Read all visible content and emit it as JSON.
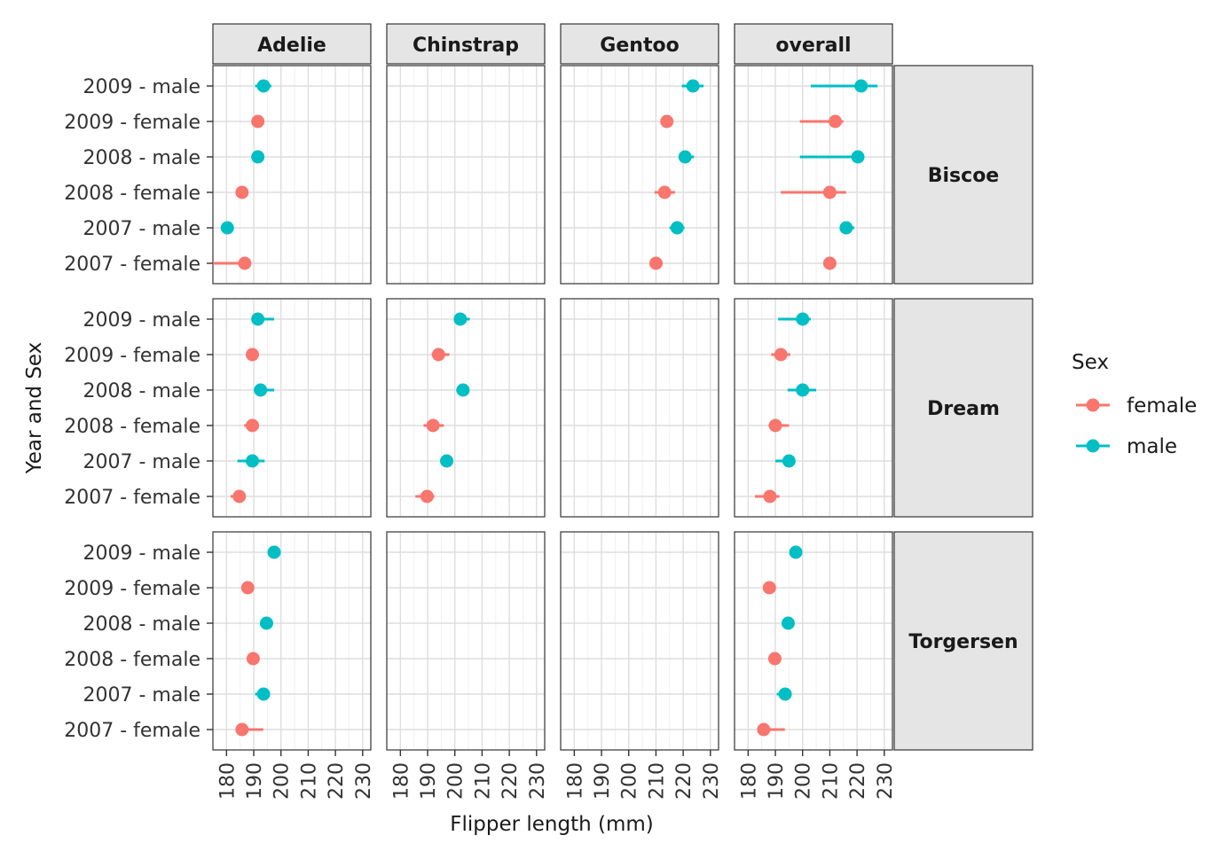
{
  "chart_data": {
    "type": "scatter",
    "subtype": "pointrange facet grid",
    "xlabel": "Flipper length (mm)",
    "ylabel": "Year and Sex",
    "xlim": [
      175,
      233
    ],
    "x_ticks": [
      180,
      190,
      200,
      210,
      220,
      230
    ],
    "y_categories": [
      "2009 - male",
      "2009 - female",
      "2008 - male",
      "2008 - female",
      "2007 - male",
      "2007 - female"
    ],
    "columns": [
      "Adelie",
      "Chinstrap",
      "Gentoo",
      "overall"
    ],
    "rows": [
      "Biscoe",
      "Dream",
      "Torgersen"
    ],
    "grid": true,
    "legend": {
      "title": "Sex",
      "placement": "right",
      "items": [
        {
          "label": "female",
          "color": "#F8766D"
        },
        {
          "label": "male",
          "color": "#00BFC4"
        }
      ]
    },
    "colors": {
      "female": "#F8766D",
      "male": "#00BFC4"
    },
    "points": [
      {
        "row": "Biscoe",
        "col": "Adelie",
        "y": "2009 - male",
        "sex": "male",
        "x": 193.6,
        "lo": 190.5,
        "hi": 196.5
      },
      {
        "row": "Biscoe",
        "col": "Adelie",
        "y": "2009 - female",
        "sex": "female",
        "x": 191.5,
        "lo": 190.0,
        "hi": 193.5
      },
      {
        "row": "Biscoe",
        "col": "Adelie",
        "y": "2008 - male",
        "sex": "male",
        "x": 191.5,
        "lo": 190.0,
        "hi": 193.0
      },
      {
        "row": "Biscoe",
        "col": "Adelie",
        "y": "2008 - female",
        "sex": "female",
        "x": 185.7,
        "lo": 184.5,
        "hi": 187.0
      },
      {
        "row": "Biscoe",
        "col": "Adelie",
        "y": "2007 - male",
        "sex": "male",
        "x": 180.3,
        "lo": 178.5,
        "hi": 182.0
      },
      {
        "row": "Biscoe",
        "col": "Adelie",
        "y": "2007 - female",
        "sex": "female",
        "x": 186.7,
        "lo": 175.0,
        "hi": 188.5
      },
      {
        "row": "Biscoe",
        "col": "Gentoo",
        "y": "2009 - male",
        "sex": "male",
        "x": 223.6,
        "lo": 219.5,
        "hi": 227.5
      },
      {
        "row": "Biscoe",
        "col": "Gentoo",
        "y": "2009 - female",
        "sex": "female",
        "x": 214.0,
        "lo": 213.0,
        "hi": 215.0
      },
      {
        "row": "Biscoe",
        "col": "Gentoo",
        "y": "2008 - male",
        "sex": "male",
        "x": 220.7,
        "lo": 218.5,
        "hi": 224.0
      },
      {
        "row": "Biscoe",
        "col": "Gentoo",
        "y": "2008 - female",
        "sex": "female",
        "x": 213.2,
        "lo": 209.5,
        "hi": 217.0
      },
      {
        "row": "Biscoe",
        "col": "Gentoo",
        "y": "2007 - male",
        "sex": "male",
        "x": 217.8,
        "lo": 215.0,
        "hi": 220.5
      },
      {
        "row": "Biscoe",
        "col": "Gentoo",
        "y": "2007 - female",
        "sex": "female",
        "x": 210.0,
        "lo": 208.5,
        "hi": 212.5
      },
      {
        "row": "Biscoe",
        "col": "overall",
        "y": "2009 - male",
        "sex": "male",
        "x": 221.5,
        "lo": 203.0,
        "hi": 227.5
      },
      {
        "row": "Biscoe",
        "col": "overall",
        "y": "2009 - female",
        "sex": "female",
        "x": 212.0,
        "lo": 199.0,
        "hi": 215.0
      },
      {
        "row": "Biscoe",
        "col": "overall",
        "y": "2008 - male",
        "sex": "male",
        "x": 220.3,
        "lo": 199.0,
        "hi": 222.5
      },
      {
        "row": "Biscoe",
        "col": "overall",
        "y": "2008 - female",
        "sex": "female",
        "x": 210.0,
        "lo": 192.0,
        "hi": 216.0
      },
      {
        "row": "Biscoe",
        "col": "overall",
        "y": "2007 - male",
        "sex": "male",
        "x": 216.0,
        "lo": 214.0,
        "hi": 219.0
      },
      {
        "row": "Biscoe",
        "col": "overall",
        "y": "2007 - female",
        "sex": "female",
        "x": 210.0,
        "lo": 208.5,
        "hi": 212.0
      },
      {
        "row": "Dream",
        "col": "Adelie",
        "y": "2009 - male",
        "sex": "male",
        "x": 191.5,
        "lo": 190.0,
        "hi": 197.5
      },
      {
        "row": "Dream",
        "col": "Adelie",
        "y": "2009 - female",
        "sex": "female",
        "x": 189.5,
        "lo": 187.5,
        "hi": 191.5
      },
      {
        "row": "Dream",
        "col": "Adelie",
        "y": "2008 - male",
        "sex": "male",
        "x": 192.5,
        "lo": 190.0,
        "hi": 197.5
      },
      {
        "row": "Dream",
        "col": "Adelie",
        "y": "2008 - female",
        "sex": "female",
        "x": 189.5,
        "lo": 186.5,
        "hi": 191.5
      },
      {
        "row": "Dream",
        "col": "Adelie",
        "y": "2007 - male",
        "sex": "male",
        "x": 189.5,
        "lo": 184.0,
        "hi": 194.0
      },
      {
        "row": "Dream",
        "col": "Adelie",
        "y": "2007 - female",
        "sex": "female",
        "x": 184.7,
        "lo": 181.5,
        "hi": 187.0
      },
      {
        "row": "Dream",
        "col": "Chinstrap",
        "y": "2009 - male",
        "sex": "male",
        "x": 202.0,
        "lo": 200.0,
        "hi": 205.5
      },
      {
        "row": "Dream",
        "col": "Chinstrap",
        "y": "2009 - female",
        "sex": "female",
        "x": 194.0,
        "lo": 191.5,
        "hi": 198.0
      },
      {
        "row": "Dream",
        "col": "Chinstrap",
        "y": "2008 - male",
        "sex": "male",
        "x": 203.0,
        "lo": 200.5,
        "hi": 204.5
      },
      {
        "row": "Dream",
        "col": "Chinstrap",
        "y": "2008 - female",
        "sex": "female",
        "x": 192.0,
        "lo": 188.5,
        "hi": 196.0
      },
      {
        "row": "Dream",
        "col": "Chinstrap",
        "y": "2007 - male",
        "sex": "male",
        "x": 197.0,
        "lo": 195.5,
        "hi": 198.5
      },
      {
        "row": "Dream",
        "col": "Chinstrap",
        "y": "2007 - female",
        "sex": "female",
        "x": 189.8,
        "lo": 185.5,
        "hi": 192.5
      },
      {
        "row": "Dream",
        "col": "overall",
        "y": "2009 - male",
        "sex": "male",
        "x": 200.0,
        "lo": 191.0,
        "hi": 203.0
      },
      {
        "row": "Dream",
        "col": "overall",
        "y": "2009 - female",
        "sex": "female",
        "x": 192.0,
        "lo": 188.5,
        "hi": 195.5
      },
      {
        "row": "Dream",
        "col": "overall",
        "y": "2008 - male",
        "sex": "male",
        "x": 200.0,
        "lo": 194.5,
        "hi": 205.0
      },
      {
        "row": "Dream",
        "col": "overall",
        "y": "2008 - female",
        "sex": "female",
        "x": 190.0,
        "lo": 187.5,
        "hi": 195.0
      },
      {
        "row": "Dream",
        "col": "overall",
        "y": "2007 - male",
        "sex": "male",
        "x": 195.0,
        "lo": 190.0,
        "hi": 196.5
      },
      {
        "row": "Dream",
        "col": "overall",
        "y": "2007 - female",
        "sex": "female",
        "x": 188.0,
        "lo": 182.5,
        "hi": 191.5
      },
      {
        "row": "Torgersen",
        "col": "Adelie",
        "y": "2009 - male",
        "sex": "male",
        "x": 197.5,
        "lo": 196.5,
        "hi": 199.0
      },
      {
        "row": "Torgersen",
        "col": "Adelie",
        "y": "2009 - female",
        "sex": "female",
        "x": 187.8,
        "lo": 187.0,
        "hi": 189.0
      },
      {
        "row": "Torgersen",
        "col": "Adelie",
        "y": "2008 - male",
        "sex": "male",
        "x": 194.7,
        "lo": 192.5,
        "hi": 196.5
      },
      {
        "row": "Torgersen",
        "col": "Adelie",
        "y": "2008 - female",
        "sex": "female",
        "x": 189.8,
        "lo": 189.0,
        "hi": 191.0
      },
      {
        "row": "Torgersen",
        "col": "Adelie",
        "y": "2007 - male",
        "sex": "male",
        "x": 193.6,
        "lo": 190.5,
        "hi": 196.0
      },
      {
        "row": "Torgersen",
        "col": "Adelie",
        "y": "2007 - female",
        "sex": "female",
        "x": 185.7,
        "lo": 184.0,
        "hi": 193.5
      },
      {
        "row": "Torgersen",
        "col": "overall",
        "y": "2009 - male",
        "sex": "male",
        "x": 197.5,
        "lo": 196.5,
        "hi": 199.0
      },
      {
        "row": "Torgersen",
        "col": "overall",
        "y": "2009 - female",
        "sex": "female",
        "x": 187.8,
        "lo": 187.0,
        "hi": 189.0
      },
      {
        "row": "Torgersen",
        "col": "overall",
        "y": "2008 - male",
        "sex": "male",
        "x": 194.7,
        "lo": 192.5,
        "hi": 196.5
      },
      {
        "row": "Torgersen",
        "col": "overall",
        "y": "2008 - female",
        "sex": "female",
        "x": 189.8,
        "lo": 189.0,
        "hi": 191.0
      },
      {
        "row": "Torgersen",
        "col": "overall",
        "y": "2007 - male",
        "sex": "male",
        "x": 193.6,
        "lo": 190.5,
        "hi": 196.0
      },
      {
        "row": "Torgersen",
        "col": "overall",
        "y": "2007 - female",
        "sex": "female",
        "x": 185.7,
        "lo": 184.0,
        "hi": 193.5
      }
    ]
  }
}
